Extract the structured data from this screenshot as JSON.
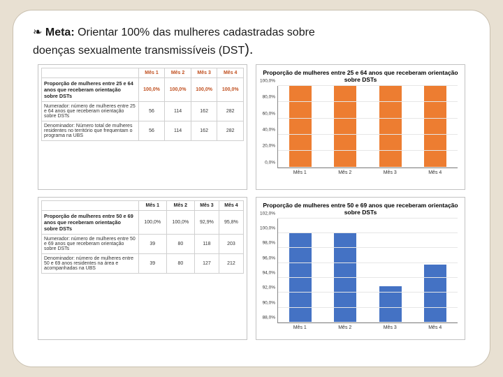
{
  "meta": {
    "bullet": "❧",
    "label": "Meta:",
    "text1": " Orientar 100% das mulheres cadastradas sobre",
    "text2": "doenças sexualmente transmissíveis (DST",
    "tail": ")."
  },
  "table1": {
    "headers": [
      "",
      "Mês 1",
      "Mês 2",
      "Mês 3",
      "Mês 4"
    ],
    "rowProp": {
      "label": "Proporção de mulheres entre 25 e 64 anos que receberam orientação sobre DSTs",
      "vals": [
        "100,0%",
        "100,0%",
        "100,0%",
        "100,0%"
      ]
    },
    "rowNum": {
      "label": "Numerador: número de mulheres entre 25 e 64 anos que receberam orientação sobre DSTs",
      "vals": [
        "56",
        "114",
        "162",
        "282"
      ]
    },
    "rowDen": {
      "label": "Denominador: Número total de mulheres residentes no território que frequentam o programa na UBS",
      "vals": [
        "56",
        "114",
        "162",
        "282"
      ]
    }
  },
  "chart1": {
    "title": "Proporção de mulheres entre 25 e 64 anos que receberam orientação sobre DSTs",
    "type": "bar",
    "ymin": 0,
    "ymax": 100,
    "yticks": [
      "0,0%",
      "20,0%",
      "40,0%",
      "60,0%",
      "80,0%",
      "100,0%"
    ],
    "categories": [
      "Mês 1",
      "Mês 2",
      "Mês 3",
      "Mês 4"
    ],
    "values": [
      100,
      100,
      100,
      100
    ],
    "bar_color": "#ed7d31",
    "grid_color": "#e6e6e6",
    "background": "#ffffff"
  },
  "table2": {
    "headers": [
      "",
      "Mês 1",
      "Mês 2",
      "Mês 3",
      "Mês 4"
    ],
    "rowProp": {
      "label": "Proporção de mulheres entre 50 e 69 anos que receberam orientação sobre DSTs",
      "vals": [
        "100,0%",
        "100,0%",
        "92,9%",
        "95,8%"
      ]
    },
    "rowNum": {
      "label": "Numerador: número de mulheres entre 50 e 69 anos que receberam orientação sobre DSTs",
      "vals": [
        "39",
        "80",
        "118",
        "203"
      ]
    },
    "rowDen": {
      "label": "Denominador: número de mulheres entre 50 e 69 anos residentes na área e acompanhadas na UBS",
      "vals": [
        "39",
        "80",
        "127",
        "212"
      ]
    }
  },
  "chart2": {
    "title": "Proporção de mulheres entre 50 e 69 anos que receberam orientação sobre DSTs",
    "type": "bar",
    "ymin": 88,
    "ymax": 102,
    "yticks": [
      "88,0%",
      "90,0%",
      "92,0%",
      "94,0%",
      "96,0%",
      "98,0%",
      "100,0%",
      "102,0%"
    ],
    "categories": [
      "Mês 1",
      "Mês 2",
      "Mês 3",
      "Mês 4"
    ],
    "values": [
      100,
      100,
      92.9,
      95.8
    ],
    "bar_color": "#4472c4",
    "grid_color": "#e6e6e6",
    "background": "#ffffff"
  }
}
